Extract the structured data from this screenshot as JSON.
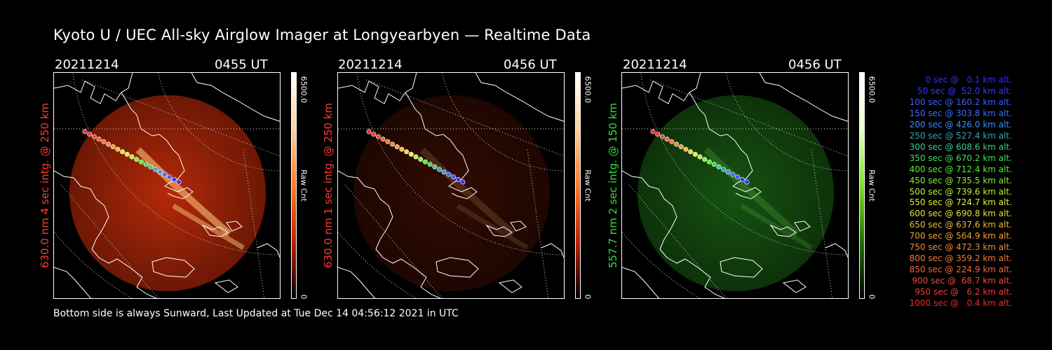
{
  "title": "Kyoto U / UEC All-sky Airglow Imager at Longyearbyen — Realtime Data",
  "panels": [
    {
      "date": "20211214",
      "time": "0455 UT",
      "side_label": "630.0 nm 4 sec intg. @ 250 km",
      "colorbar_max": "6500.0",
      "colorbar_min": "0",
      "colorbar_unit": "Raw Cnt",
      "channel": "red",
      "intensity": 0.9
    },
    {
      "date": "20211214",
      "time": "0456 UT",
      "side_label": "630.0 nm 1 sec intg. @ 250 km",
      "colorbar_max": "6500.0",
      "colorbar_min": "0",
      "colorbar_unit": "Raw Cnt",
      "channel": "red",
      "intensity": 0.25
    },
    {
      "date": "20211214",
      "time": "0456 UT",
      "side_label": "557.7 nm 2 sec intg. @ 150 km",
      "colorbar_max": "6500.0",
      "colorbar_min": "0",
      "colorbar_unit": "Raw Cnt",
      "channel": "green",
      "intensity": 0.55
    }
  ],
  "colors": {
    "red_label": "#ff3b2f",
    "green_label": "#33e03a"
  },
  "legend": [
    {
      "text": "0 sec @   0.1 km alt.",
      "color": "#2f2fff"
    },
    {
      "text": "50 sec @  52.0 km alt.",
      "color": "#3838ff"
    },
    {
      "text": "100 sec @ 160.2 km alt.",
      "color": "#3a5cff"
    },
    {
      "text": "150 sec @ 303.8 km alt.",
      "color": "#3a6cff"
    },
    {
      "text": "200 sec @ 426.0 km alt.",
      "color": "#3a8cff"
    },
    {
      "text": "250 sec @ 527.4 km alt.",
      "color": "#3aa0b4"
    },
    {
      "text": "300 sec @ 608.6 km alt.",
      "color": "#3ad08c"
    },
    {
      "text": "350 sec @ 670.2 km alt.",
      "color": "#3ae05a"
    },
    {
      "text": "400 sec @ 712.4 km alt.",
      "color": "#5aef3a"
    },
    {
      "text": "450 sec @ 735.5 km alt.",
      "color": "#8cef3a"
    },
    {
      "text": "500 sec @ 739.6 km alt.",
      "color": "#bfef3a"
    },
    {
      "text": "550 sec @ 724.7 km alt.",
      "color": "#e6ef3a"
    },
    {
      "text": "600 sec @ 690.8 km alt.",
      "color": "#efdf3a"
    },
    {
      "text": "650 sec @ 637.6 km alt.",
      "color": "#efbd3a"
    },
    {
      "text": "700 sec @ 564.9 km alt.",
      "color": "#efa03a"
    },
    {
      "text": "750 sec @ 472.3 km alt.",
      "color": "#ef8c3a"
    },
    {
      "text": "800 sec @ 359.2 km alt.",
      "color": "#ef7a3a"
    },
    {
      "text": "850 sec @ 224.9 km alt.",
      "color": "#ef6a3a"
    },
    {
      "text": "900 sec @  68.7 km alt.",
      "color": "#ef4a3a"
    },
    {
      "text": "950 sec @   6.2 km alt.",
      "color": "#ef3a3a"
    },
    {
      "text": "1000 sec @   0.4 km alt.",
      "color": "#ef2a2a"
    }
  ],
  "footer": "Bottom side is always Sunward, Last Updated at Tue Dec 14 04:56:12 2021 in UTC"
}
